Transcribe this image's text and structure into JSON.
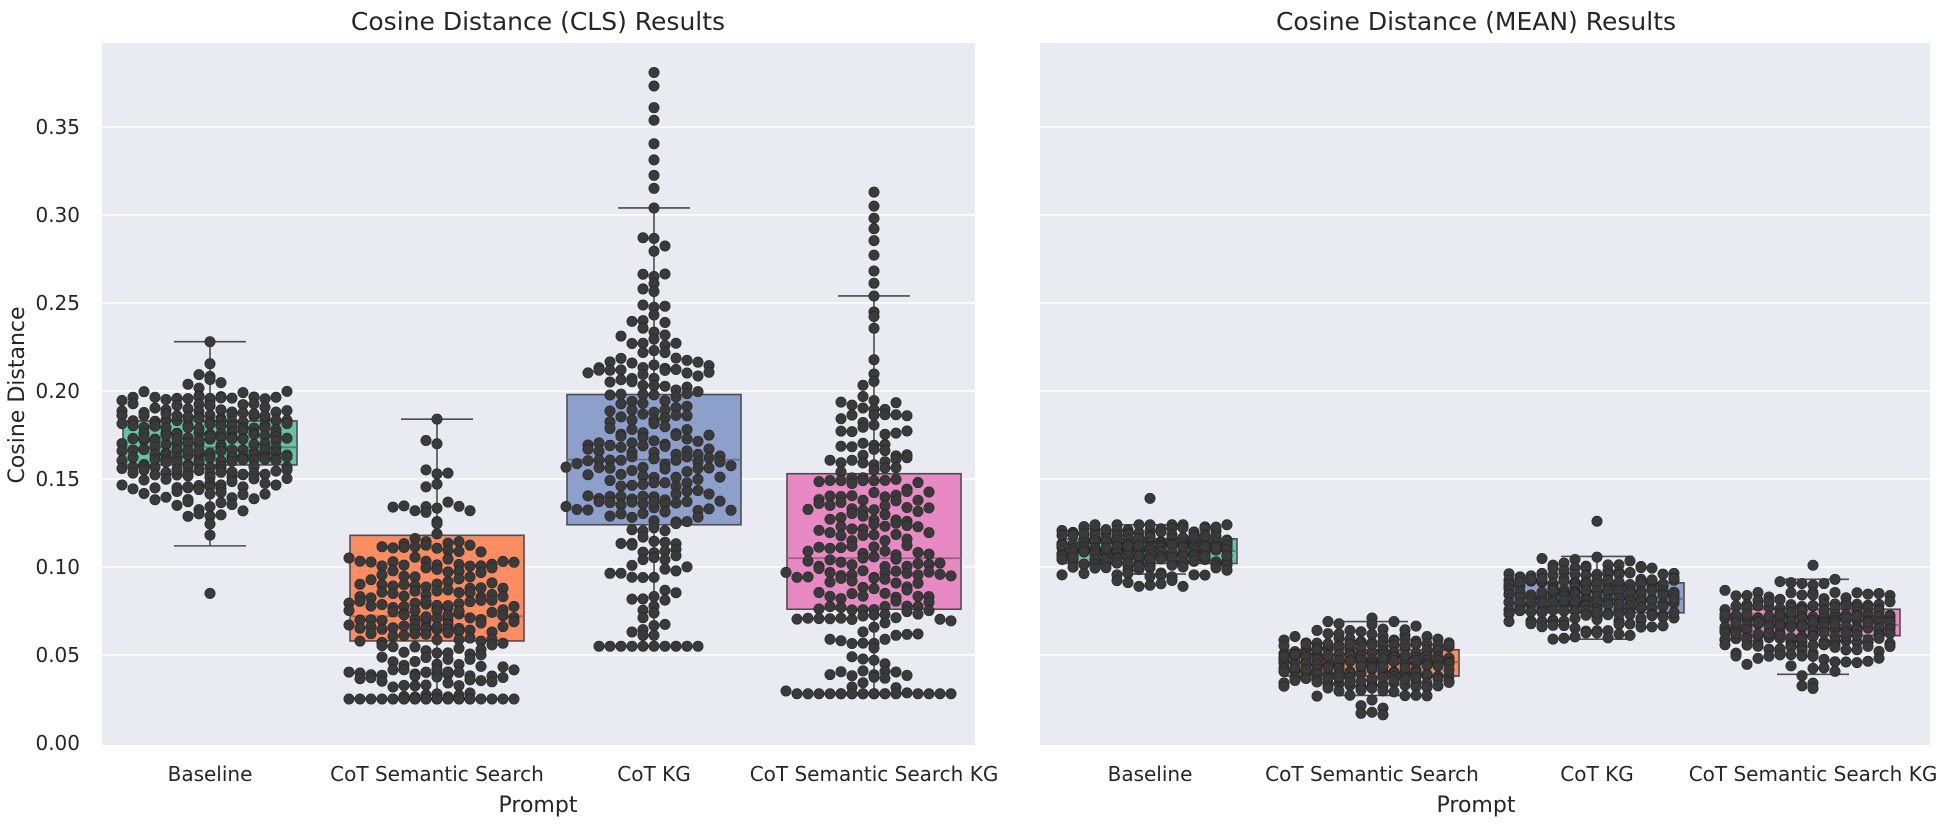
{
  "chart_data": [
    {
      "type": "box-swarm",
      "title": "Cosine Distance (CLS) Results",
      "xlabel": "Prompt",
      "ylabel": "Cosine Distance",
      "ylim": [
        0,
        0.4
      ],
      "yticks": [
        0.0,
        0.05,
        0.1,
        0.15,
        0.2,
        0.25,
        0.3,
        0.35
      ],
      "ytick_labels": [
        "0.00",
        "0.05",
        "0.10",
        "0.15",
        "0.20",
        "0.25",
        "0.30",
        "0.35"
      ],
      "grid": true,
      "categories": [
        "Baseline",
        "CoT Semantic Search",
        "CoT KG",
        "CoT Semantic Search KG"
      ],
      "colors": [
        "#66c2a5",
        "#fc8d62",
        "#8da0cb",
        "#e78ac3"
      ],
      "boxes": [
        {
          "whisker_low": 0.112,
          "q1": 0.158,
          "median": 0.168,
          "q3": 0.183,
          "whisker_high": 0.228,
          "min": 0.085,
          "max": 0.228,
          "spread": 0.019,
          "n": 260
        },
        {
          "whisker_low": 0.025,
          "q1": 0.058,
          "median": 0.072,
          "q3": 0.118,
          "whisker_high": 0.184,
          "min": 0.025,
          "max": 0.184,
          "spread": 0.036,
          "n": 250
        },
        {
          "whisker_low": 0.055,
          "q1": 0.124,
          "median": 0.161,
          "q3": 0.198,
          "whisker_high": 0.304,
          "min": 0.055,
          "max": 0.381,
          "spread": 0.054,
          "n": 250
        },
        {
          "whisker_low": 0.028,
          "q1": 0.076,
          "median": 0.105,
          "q3": 0.153,
          "whisker_high": 0.254,
          "min": 0.028,
          "max": 0.313,
          "spread": 0.055,
          "n": 250
        }
      ]
    },
    {
      "type": "box-swarm",
      "title": "Cosine Distance (MEAN) Results",
      "xlabel": "Prompt",
      "ylabel": "",
      "ylim": [
        0,
        0.4
      ],
      "grid": true,
      "categories": [
        "Baseline",
        "CoT Semantic Search",
        "CoT KG",
        "CoT Semantic Search KG"
      ],
      "colors": [
        "#66c2a5",
        "#fc8d62",
        "#8da0cb",
        "#e78ac3"
      ],
      "boxes": [
        {
          "whisker_low": 0.096,
          "q1": 0.102,
          "median": 0.109,
          "q3": 0.116,
          "whisker_high": 0.124,
          "min": 0.089,
          "max": 0.139,
          "spread": 0.008,
          "n": 260
        },
        {
          "whisker_low": 0.027,
          "q1": 0.038,
          "median": 0.046,
          "q3": 0.053,
          "whisker_high": 0.069,
          "min": 0.016,
          "max": 0.071,
          "spread": 0.01,
          "n": 250
        },
        {
          "whisker_low": 0.059,
          "q1": 0.074,
          "median": 0.082,
          "q3": 0.091,
          "whisker_high": 0.106,
          "min": 0.059,
          "max": 0.126,
          "spread": 0.01,
          "n": 250
        },
        {
          "whisker_low": 0.039,
          "q1": 0.061,
          "median": 0.067,
          "q3": 0.076,
          "whisker_high": 0.093,
          "min": 0.031,
          "max": 0.101,
          "spread": 0.011,
          "n": 250
        }
      ]
    }
  ]
}
